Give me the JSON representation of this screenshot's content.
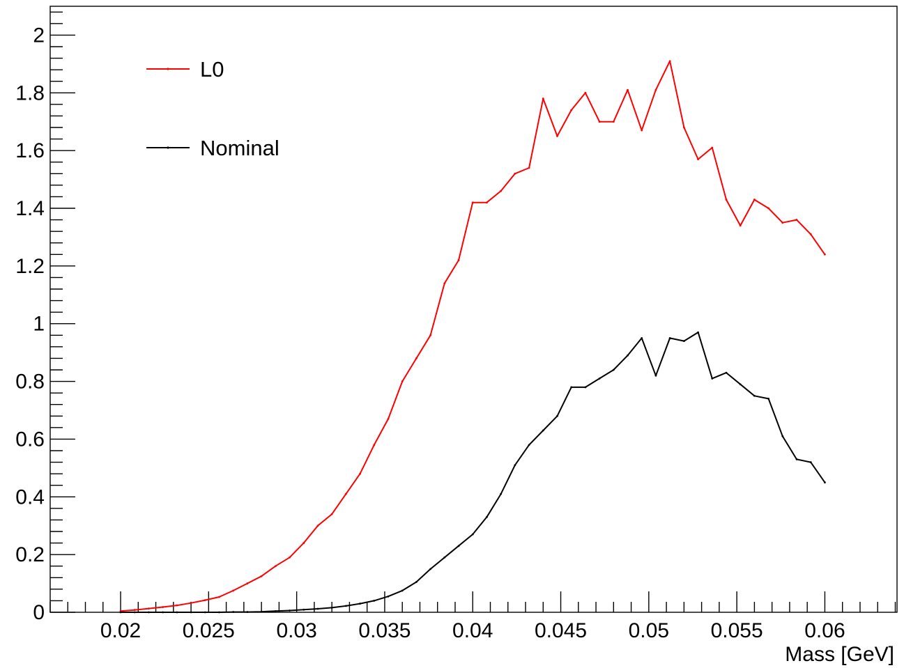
{
  "chart_data": {
    "type": "line",
    "title": "",
    "xlabel": "Mass [GeV]",
    "ylabel": "",
    "xlim": [
      0.016,
      0.0641
    ],
    "ylim": [
      0,
      2.1
    ],
    "xticks": [
      {
        "value": 0.02,
        "label": "0.02"
      },
      {
        "value": 0.025,
        "label": "0.025"
      },
      {
        "value": 0.03,
        "label": "0.03"
      },
      {
        "value": 0.035,
        "label": "0.035"
      },
      {
        "value": 0.04,
        "label": "0.04"
      },
      {
        "value": 0.045,
        "label": "0.045"
      },
      {
        "value": 0.05,
        "label": "0.05"
      },
      {
        "value": 0.055,
        "label": "0.055"
      },
      {
        "value": 0.06,
        "label": "0.06"
      }
    ],
    "yticks": [
      {
        "value": 0,
        "label": "0"
      },
      {
        "value": 0.2,
        "label": "0.2"
      },
      {
        "value": 0.4,
        "label": "0.4"
      },
      {
        "value": 0.6,
        "label": "0.6"
      },
      {
        "value": 0.8,
        "label": "0.8"
      },
      {
        "value": 1,
        "label": "1"
      },
      {
        "value": 1.2,
        "label": "1.2"
      },
      {
        "value": 1.4,
        "label": "1.4"
      },
      {
        "value": 1.6,
        "label": "1.6"
      },
      {
        "value": 1.8,
        "label": "1.8"
      },
      {
        "value": 2,
        "label": "2"
      }
    ],
    "grid": false,
    "legend_position": "top-left",
    "x": [
      0.02,
      0.0208,
      0.0216,
      0.0224,
      0.0232,
      0.024,
      0.0248,
      0.0256,
      0.0264,
      0.0272,
      0.028,
      0.0288,
      0.0296,
      0.0304,
      0.0312,
      0.032,
      0.0328,
      0.0336,
      0.0344,
      0.0352,
      0.036,
      0.0368,
      0.0376,
      0.0384,
      0.0392,
      0.04,
      0.0408,
      0.0416,
      0.0424,
      0.0432,
      0.044,
      0.0448,
      0.0456,
      0.0464,
      0.0472,
      0.048,
      0.0488,
      0.0496,
      0.0504,
      0.0512,
      0.052,
      0.0528,
      0.0536,
      0.0544,
      0.0552,
      0.056,
      0.0568,
      0.0576,
      0.0584,
      0.0592,
      0.06
    ],
    "series": [
      {
        "name": "L0",
        "color": "#ff0000",
        "values": [
          0.004,
          0.008,
          0.013,
          0.018,
          0.024,
          0.032,
          0.042,
          0.053,
          0.075,
          0.1,
          0.125,
          0.16,
          0.19,
          0.24,
          0.3,
          0.34,
          0.41,
          0.48,
          0.58,
          0.67,
          0.8,
          0.88,
          0.96,
          1.14,
          1.22,
          1.42,
          1.42,
          1.46,
          1.52,
          1.54,
          1.78,
          1.65,
          1.74,
          1.8,
          1.7,
          1.7,
          1.81,
          1.67,
          1.81,
          1.91,
          1.68,
          1.57,
          1.61,
          1.43,
          1.34,
          1.43,
          1.4,
          1.35,
          1.36,
          1.31,
          1.24
        ]
      },
      {
        "name": "Nominal",
        "color": "#000000",
        "values": [
          0,
          0,
          0,
          0,
          0,
          0,
          0,
          0,
          0.001,
          0.001,
          0.002,
          0.004,
          0.006,
          0.009,
          0.012,
          0.016,
          0.022,
          0.03,
          0.04,
          0.055,
          0.075,
          0.105,
          0.15,
          0.19,
          0.23,
          0.27,
          0.33,
          0.41,
          0.51,
          0.58,
          0.63,
          0.68,
          0.78,
          0.78,
          0.81,
          0.84,
          0.89,
          0.95,
          0.82,
          0.95,
          0.94,
          0.97,
          0.81,
          0.83,
          0.79,
          0.75,
          0.74,
          0.61,
          0.53,
          0.52,
          0.45
        ]
      }
    ]
  }
}
